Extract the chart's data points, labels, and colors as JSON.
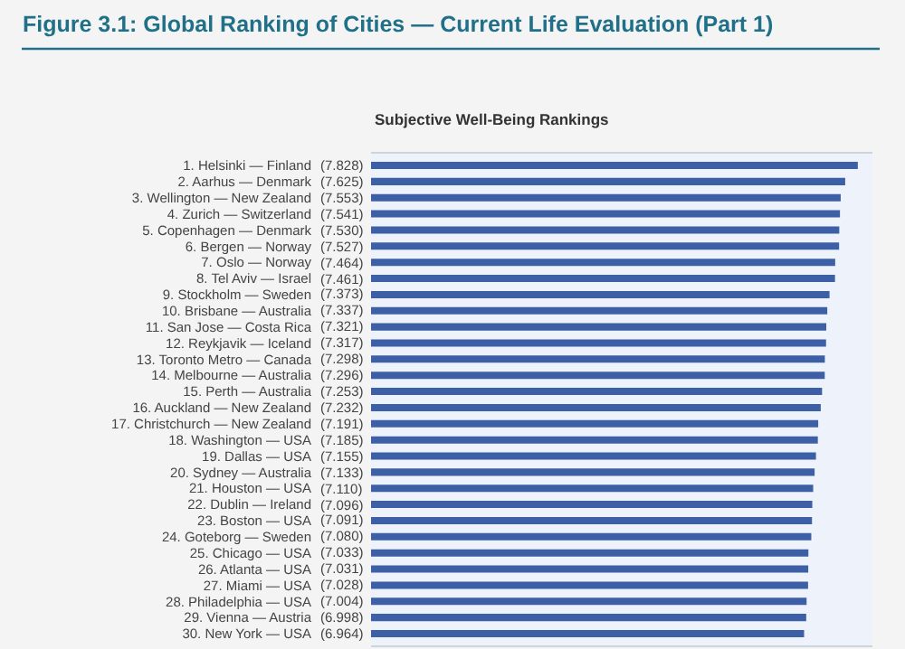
{
  "chart_data": {
    "type": "bar",
    "orientation": "horizontal",
    "title": "Figure 3.1: Global Ranking of Cities — Current Life Evaluation (Part 1)",
    "subtitle": "Subjective Well-Being Rankings",
    "categories": [
      "1. Helsinki — Finland",
      "2. Aarhus — Denmark",
      "3. Wellington — New Zealand",
      "4. Zurich — Switzerland",
      "5. Copenhagen — Denmark",
      "6. Bergen — Norway",
      "7. Oslo — Norway",
      "8. Tel Aviv — Israel",
      "9. Stockholm — Sweden",
      "10. Brisbane — Australia",
      "11. San Jose — Costa Rica",
      "12. Reykjavik — Iceland",
      "13. Toronto Metro — Canada",
      "14. Melbourne — Australia",
      "15. Perth — Australia",
      "16. Auckland — New Zealand",
      "17. Christchurch — New Zealand",
      "18. Washington — USA",
      "19. Dallas — USA",
      "20. Sydney — Australia",
      "21. Houston — USA",
      "22. Dublin — Ireland",
      "23. Boston — USA",
      "24. Goteborg — Sweden",
      "25. Chicago — USA",
      "26. Atlanta — USA",
      "27. Miami — USA",
      "28. Philadelphia — USA",
      "29. Vienna — Austria",
      "30. New York — USA"
    ],
    "values": [
      7.828,
      7.625,
      7.553,
      7.541,
      7.53,
      7.527,
      7.464,
      7.461,
      7.373,
      7.337,
      7.321,
      7.317,
      7.298,
      7.296,
      7.253,
      7.232,
      7.191,
      7.185,
      7.155,
      7.133,
      7.11,
      7.096,
      7.091,
      7.08,
      7.033,
      7.031,
      7.028,
      7.004,
      6.998,
      6.964
    ],
    "value_labels": [
      "(7.828)",
      "(7.625)",
      "(7.553)",
      "(7.541)",
      "(7.530)",
      "(7.527)",
      "(7.464)",
      "(7.461)",
      "(7.373)",
      "(7.337)",
      "(7.321)",
      "(7.317)",
      "(7.298)",
      "(7.296)",
      "(7.253)",
      "(7.232)",
      "(7.191)",
      "(7.185)",
      "(7.155)",
      "(7.133)",
      "(7.110)",
      "(7.096)",
      "(7.091)",
      "(7.080)",
      "(7.033)",
      "(7.031)",
      "(7.028)",
      "(7.004)",
      "(6.998)",
      "(6.964)"
    ],
    "color": "#3d5fa6",
    "tick_labels": "y"
  }
}
